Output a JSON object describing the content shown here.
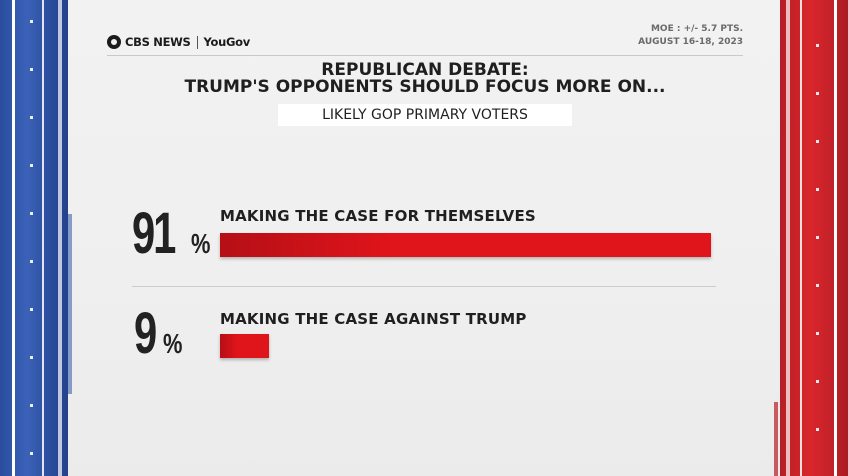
{
  "header": {
    "network": "CBS NEWS",
    "partner": "YouGov",
    "moe": "MOE : +/- 5.7 PTS.",
    "dates": "AUGUST 16-18, 2023"
  },
  "title_line1": "REPUBLICAN DEBATE:",
  "title_line2": "TRUMP'S OPPONENTS SHOULD FOCUS MORE ON...",
  "subtitle": "LIKELY GOP PRIMARY VOTERS",
  "colors": {
    "bar": "#e0141b",
    "bar_dark": "#b50f16",
    "left_flag": "#3a62b8",
    "right_flag": "#d9262d"
  },
  "chart_data": {
    "type": "bar",
    "orientation": "horizontal",
    "title": "REPUBLICAN DEBATE: TRUMP'S OPPONENTS SHOULD FOCUS MORE ON...",
    "subtitle": "LIKELY GOP PRIMARY VOTERS",
    "categories": [
      "MAKING THE CASE FOR THEMSELVES",
      "MAKING THE CASE AGAINST TRUMP"
    ],
    "values": [
      91,
      9
    ],
    "value_labels": [
      "91",
      "9"
    ],
    "unit": "%",
    "xlim": [
      0,
      100
    ]
  }
}
